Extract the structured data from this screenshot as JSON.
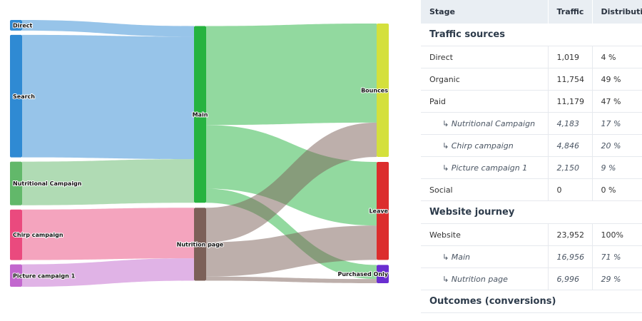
{
  "chart_data": {
    "type": "sankey",
    "nodes": [
      {
        "id": "direct",
        "label": "Direct",
        "color": "#2f8ad3"
      },
      {
        "id": "search",
        "label": "Search",
        "color": "#2f8ad3"
      },
      {
        "id": "nutr",
        "label": "Nutritional Campaign",
        "color": "#62b86a"
      },
      {
        "id": "chirp",
        "label": "Chirp campaign",
        "color": "#ea4a7e"
      },
      {
        "id": "pic",
        "label": "Picture campaign 1",
        "color": "#c267ce"
      },
      {
        "id": "main",
        "label": "Main",
        "color": "#26b33f"
      },
      {
        "id": "nutpage",
        "label": "Nutrition page",
        "color": "#7c6058"
      },
      {
        "id": "bounces",
        "label": "Bounces",
        "color": "#d4e03c"
      },
      {
        "id": "leave",
        "label": "Leave",
        "color": "#dc2d2d"
      },
      {
        "id": "purchased",
        "label": "Purchased Only",
        "color": "#6a2ed0"
      }
    ],
    "links": [
      {
        "source": "direct",
        "target": "main",
        "value": 1019
      },
      {
        "source": "search",
        "target": "main",
        "value": 11754
      },
      {
        "source": "nutr",
        "target": "main",
        "value": 4183
      },
      {
        "source": "chirp",
        "target": "nutpage",
        "value": 4846
      },
      {
        "source": "pic",
        "target": "nutpage",
        "value": 2150
      },
      {
        "source": "main",
        "target": "bounces",
        "value": 9500
      },
      {
        "source": "main",
        "target": "leave",
        "value": 6100
      },
      {
        "source": "main",
        "target": "purchased",
        "value": 1356
      },
      {
        "source": "nutpage",
        "target": "bounces",
        "value": 3300
      },
      {
        "source": "nutpage",
        "target": "leave",
        "value": 3300
      },
      {
        "source": "nutpage",
        "target": "purchased",
        "value": 396
      }
    ]
  },
  "table": {
    "headers": [
      "Stage",
      "Traffic",
      "Distribution"
    ],
    "rows": [
      {
        "type": "section",
        "label": "Traffic sources"
      },
      {
        "type": "row",
        "label": "Direct",
        "traffic": "1,019",
        "dist": "4 %"
      },
      {
        "type": "row",
        "label": "Organic",
        "traffic": "11,754",
        "dist": "49 %"
      },
      {
        "type": "row",
        "label": "Paid",
        "traffic": "11,179",
        "dist": "47 %"
      },
      {
        "type": "sub",
        "label": "↳ Nutritional Campaign",
        "traffic": "4,183",
        "dist": "17 %"
      },
      {
        "type": "sub",
        "label": "↳ Chirp campaign",
        "traffic": "4,846",
        "dist": "20 %"
      },
      {
        "type": "sub",
        "label": "↳ Picture campaign 1",
        "traffic": "2,150",
        "dist": "9 %"
      },
      {
        "type": "row",
        "label": "Social",
        "traffic": "0",
        "dist": "0 %"
      },
      {
        "type": "section",
        "label": "Website journey"
      },
      {
        "type": "row",
        "label": "Website",
        "traffic": "23,952",
        "dist": "100%"
      },
      {
        "type": "sub",
        "label": "↳ Main",
        "traffic": "16,956",
        "dist": "71 %"
      },
      {
        "type": "sub",
        "label": "↳ Nutrition page",
        "traffic": "6,996",
        "dist": "29 %"
      },
      {
        "type": "section",
        "label": "Outcomes (conversions)"
      }
    ]
  }
}
